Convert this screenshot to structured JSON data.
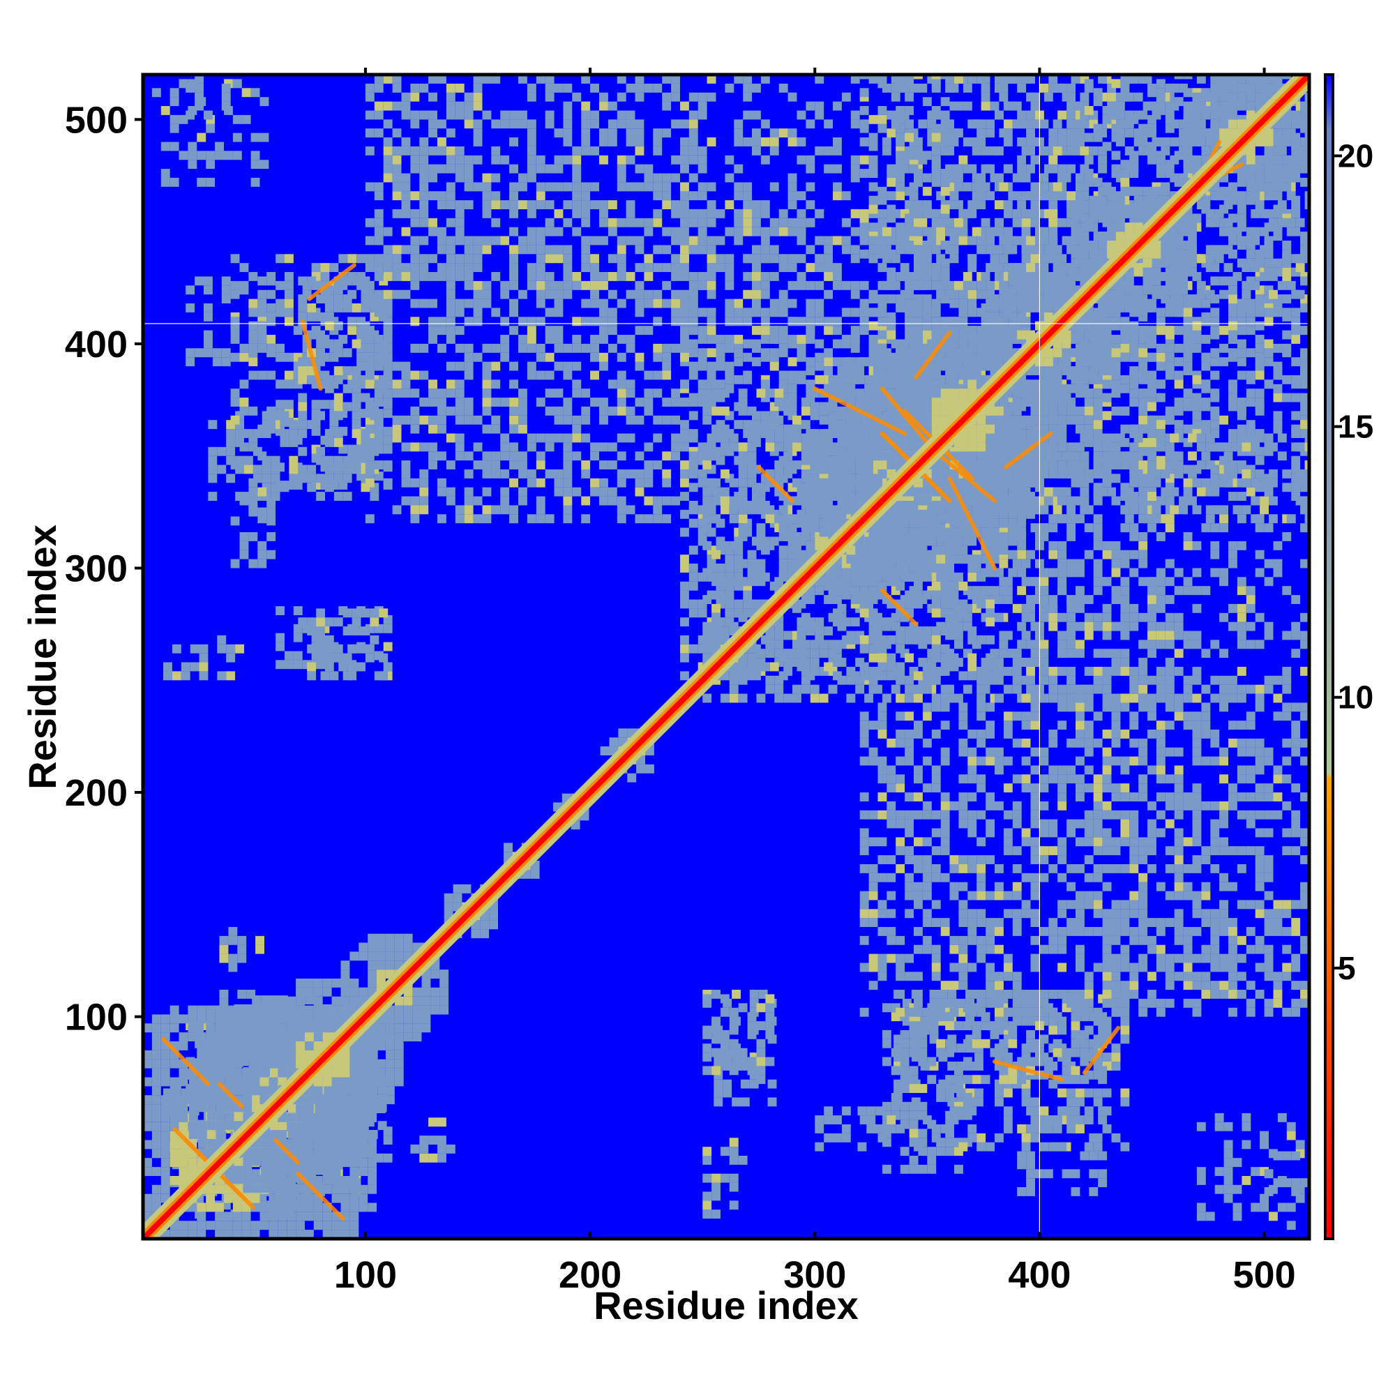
{
  "chart_data": {
    "type": "heatmap",
    "title": "",
    "xlabel": "Residue index",
    "ylabel": "Residue index",
    "xlim": [
      1,
      520
    ],
    "ylim": [
      1,
      520
    ],
    "x_ticks": [
      100,
      200,
      300,
      400,
      500
    ],
    "y_ticks": [
      100,
      200,
      300,
      400,
      500
    ],
    "colorbar": {
      "range": [
        0,
        21.5
      ],
      "ticks": [
        5,
        10,
        15,
        20
      ],
      "stops": [
        {
          "value": 0,
          "color": "#ff0000"
        },
        {
          "value": 8.5,
          "color": "#ffa500"
        },
        {
          "value": 8.6,
          "color": "#b4c898"
        },
        {
          "value": 13,
          "color": "#8ca0b4"
        },
        {
          "value": 20.5,
          "color": "#6a84c2"
        },
        {
          "value": 21.5,
          "color": "#0000ff"
        }
      ]
    },
    "colors": {
      "background": "#0000ff",
      "diagonal": "#ff0000",
      "contact": "#ff8c00",
      "near": "#c8c87a",
      "mid": "#7a9ac8",
      "far": "#0000ff"
    },
    "grid": false,
    "reference_lines": {
      "x": 400,
      "y": 409
    },
    "diagonal_blobs": [
      [
        10,
        60,
        70
      ],
      [
        30,
        95,
        45
      ],
      [
        60,
        100,
        35
      ],
      [
        80,
        140,
        25
      ],
      [
        140,
        150,
        14
      ],
      [
        165,
        170,
        10
      ],
      [
        188,
        195,
        8
      ],
      [
        215,
        218,
        12
      ],
      [
        258,
        262,
        14
      ],
      [
        290,
        330,
        30
      ],
      [
        330,
        360,
        55
      ],
      [
        350,
        380,
        45
      ],
      [
        380,
        420,
        30
      ],
      [
        420,
        460,
        30
      ],
      [
        470,
        510,
        30
      ]
    ],
    "off_diagonal_blocks": [
      [
        10,
        95,
        20,
        75,
        0.55
      ],
      [
        70,
        105,
        90,
        100,
        0.5
      ],
      [
        60,
        110,
        255,
        280,
        0.45
      ],
      [
        60,
        110,
        335,
        375,
        0.45
      ],
      [
        60,
        110,
        380,
        440,
        0.55
      ],
      [
        35,
        55,
        80,
        140,
        0.3
      ],
      [
        250,
        270,
        10,
        45,
        0.35
      ],
      [
        260,
        265,
        250,
        310,
        0.35
      ],
      [
        250,
        265,
        80,
        110,
        0.4
      ],
      [
        315,
        330,
        40,
        60,
        0.45
      ],
      [
        330,
        370,
        30,
        105,
        0.5
      ],
      [
        370,
        430,
        70,
        110,
        0.55
      ],
      [
        470,
        515,
        5,
        55,
        0.35
      ],
      [
        240,
        380,
        250,
        400,
        0.45
      ],
      [
        240,
        520,
        380,
        460,
        0.3
      ],
      [
        400,
        520,
        260,
        420,
        0.35
      ],
      [
        330,
        520,
        420,
        520,
        0.35
      ],
      [
        100,
        255,
        320,
        520,
        0.5
      ],
      [
        250,
        520,
        320,
        360,
        0.35
      ],
      [
        20,
        60,
        390,
        430,
        0.35
      ],
      [
        20,
        40,
        500,
        520,
        0.45
      ],
      [
        70,
        110,
        250,
        280,
        0.4
      ],
      [
        40,
        60,
        300,
        360,
        0.35
      ],
      [
        40,
        60,
        360,
        440,
        0.4
      ]
    ],
    "contact_lines": [
      [
        20,
        45,
        50,
        15
      ],
      [
        70,
        30,
        90,
        10
      ],
      [
        35,
        70,
        45,
        60
      ],
      [
        330,
        360,
        360,
        330
      ],
      [
        340,
        370,
        360,
        350
      ],
      [
        350,
        355,
        380,
        330
      ],
      [
        385,
        345,
        405,
        360
      ],
      [
        275,
        345,
        290,
        330
      ],
      [
        380,
        80,
        410,
        72
      ],
      [
        420,
        75,
        435,
        95
      ],
      [
        360,
        340,
        380,
        300
      ],
      [
        470,
        470,
        490,
        480
      ]
    ]
  }
}
